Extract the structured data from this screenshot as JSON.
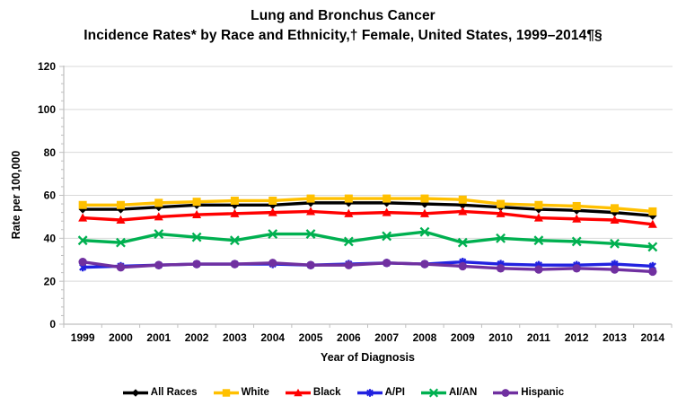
{
  "title": {
    "line1": "Lung and Bronchus Cancer",
    "line2": "Incidence Rates* by Race and Ethnicity,† Female, United States, 1999–2014¶§"
  },
  "chart_data": {
    "type": "line",
    "x": [
      1999,
      2000,
      2001,
      2002,
      2003,
      2004,
      2005,
      2006,
      2007,
      2008,
      2009,
      2010,
      2011,
      2012,
      2013,
      2014
    ],
    "series": [
      {
        "name": "All Races",
        "color": "#000000",
        "marker": "diamond",
        "values": [
          53.5,
          53.5,
          54.5,
          55.5,
          55.5,
          55.5,
          56.5,
          56.5,
          56.5,
          56,
          55.5,
          54.5,
          53.5,
          53,
          52,
          50.5
        ]
      },
      {
        "name": "White",
        "color": "#FFC000",
        "marker": "square",
        "values": [
          55.5,
          55.5,
          56.5,
          57,
          57.5,
          57.5,
          58.5,
          58.5,
          58.5,
          58.5,
          58,
          56,
          55.5,
          55,
          54,
          52.5
        ]
      },
      {
        "name": "Black",
        "color": "#FF0000",
        "marker": "triangle",
        "values": [
          49.5,
          48.5,
          50,
          51,
          51.5,
          52,
          52.5,
          51.5,
          52,
          51.5,
          52.5,
          51.5,
          49.5,
          49,
          48.5,
          46.5
        ]
      },
      {
        "name": "A/PI",
        "color": "#2222E0",
        "marker": "asterisk",
        "values": [
          26.5,
          27,
          27.5,
          28,
          28,
          28,
          27.5,
          28,
          28.5,
          28,
          29,
          28,
          27.5,
          27.5,
          28,
          27
        ]
      },
      {
        "name": "AI/AN",
        "color": "#00B050",
        "marker": "x",
        "values": [
          39,
          38,
          42,
          40.5,
          39,
          42,
          42,
          38.5,
          41,
          43,
          38,
          40,
          39,
          38.5,
          37.5,
          36
        ]
      },
      {
        "name": "Hispanic",
        "color": "#7030A0",
        "marker": "circle",
        "values": [
          29,
          26.5,
          27.5,
          28,
          28,
          28.5,
          27.5,
          27.5,
          28.5,
          28,
          27,
          26,
          25.5,
          26,
          25.5,
          24.5
        ]
      }
    ],
    "xlabel": "Year of Diagnosis",
    "ylabel": "Rate per 100,000",
    "ylim": [
      0,
      120
    ],
    "ytick_interval": 20,
    "ytick_minor_interval": 4,
    "yticks": [
      0,
      20,
      40,
      60,
      80,
      100,
      120
    ],
    "grid": true,
    "legend_position": "bottom"
  },
  "colors": {
    "gridline": "#D9D9D9",
    "axis": "#BFBFBF",
    "text": "#000000",
    "background": "#FFFFFF"
  }
}
